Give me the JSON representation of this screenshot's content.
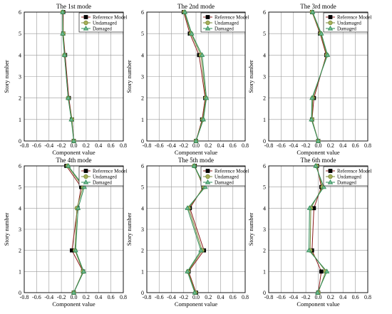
{
  "colors": {
    "reference": "#8b1a1a",
    "undamaged": "#7a8a3a",
    "damaged": "#2e8b57",
    "reference_marker": "#000000",
    "grid": "#9a9a9a"
  },
  "chart_data": [
    {
      "type": "line",
      "title": "The 1st mode",
      "xlabel": "Component value",
      "ylabel": "Story number",
      "xlim": [
        -0.8,
        0.8
      ],
      "ylim": [
        0,
        6
      ],
      "xticks": [
        "-0.8",
        "-0.6",
        "-0.4",
        "-0.2",
        "0.0",
        "0.2",
        "0.4",
        "0.6",
        "0.8"
      ],
      "yticks": [
        "0",
        "1",
        "2",
        "3",
        "4",
        "5",
        "6"
      ],
      "grid": true,
      "legend_position": "top-right",
      "y": [
        0,
        1,
        2,
        4,
        5,
        6
      ],
      "series": [
        {
          "name": "Reference Model",
          "marker": "square",
          "values": [
            0.0,
            -0.03,
            -0.08,
            -0.14,
            -0.17,
            -0.17
          ]
        },
        {
          "name": "Undamaged",
          "marker": "circle",
          "values": [
            0.0,
            -0.03,
            -0.09,
            -0.15,
            -0.17,
            -0.18
          ]
        },
        {
          "name": "Damaged",
          "marker": "triangle",
          "values": [
            0.0,
            -0.04,
            -0.09,
            -0.15,
            -0.18,
            -0.18
          ]
        }
      ]
    },
    {
      "type": "line",
      "title": "The 2nd mode",
      "xlabel": "Component value",
      "ylabel": "Story number",
      "xlim": [
        -0.8,
        0.8
      ],
      "ylim": [
        0,
        6
      ],
      "xticks": [
        "-0.8",
        "-0.6",
        "-0.4",
        "-0.2",
        "0.0",
        "0.2",
        "0.4",
        "0.6",
        "0.8"
      ],
      "yticks": [
        "0",
        "1",
        "2",
        "3",
        "4",
        "5",
        "6"
      ],
      "grid": true,
      "legend_position": "top-right",
      "y": [
        0,
        1,
        2,
        4,
        5,
        6
      ],
      "series": [
        {
          "name": "Reference Model",
          "marker": "square",
          "values": [
            0.0,
            0.1,
            0.15,
            0.05,
            -0.1,
            -0.2
          ]
        },
        {
          "name": "Undamaged",
          "marker": "circle",
          "values": [
            0.0,
            0.11,
            0.16,
            0.08,
            -0.08,
            -0.19
          ]
        },
        {
          "name": "Damaged",
          "marker": "triangle",
          "values": [
            0.0,
            0.12,
            0.17,
            0.1,
            -0.07,
            -0.18
          ]
        }
      ]
    },
    {
      "type": "line",
      "title": "The 3rd mode",
      "xlabel": "Component value",
      "ylabel": "Story number",
      "xlim": [
        -0.8,
        0.8
      ],
      "ylim": [
        0,
        6
      ],
      "xticks": [
        "-0.8",
        "-0.6",
        "-0.4",
        "-0.2",
        "0.0",
        "0.2",
        "0.4",
        "0.6",
        "0.8"
      ],
      "yticks": [
        "0",
        "1",
        "2",
        "3",
        "4",
        "5",
        "6"
      ],
      "grid": true,
      "legend_position": "top-right",
      "y": [
        0,
        1,
        2,
        4,
        5,
        6
      ],
      "series": [
        {
          "name": "Reference Model",
          "marker": "square",
          "values": [
            0.0,
            -0.1,
            -0.07,
            0.13,
            0.03,
            -0.1
          ]
        },
        {
          "name": "Undamaged",
          "marker": "circle",
          "values": [
            0.0,
            -0.1,
            -0.09,
            0.14,
            0.04,
            -0.1
          ]
        },
        {
          "name": "Damaged",
          "marker": "triangle",
          "values": [
            0.0,
            -0.11,
            -0.1,
            0.15,
            0.05,
            -0.09
          ]
        }
      ]
    },
    {
      "type": "line",
      "title": "The 4th mode",
      "xlabel": "Component value",
      "ylabel": "Story number",
      "xlim": [
        -0.8,
        0.8
      ],
      "ylim": [
        0,
        6
      ],
      "xticks": [
        "-0.8",
        "-0.6",
        "-0.4",
        "-0.2",
        "0.0",
        "0.2",
        "0.4",
        "0.6",
        "0.8"
      ],
      "yticks": [
        "0",
        "1",
        "2",
        "3",
        "4",
        "5",
        "6"
      ],
      "grid": true,
      "legend_position": "top-right",
      "y": [
        0,
        1,
        2,
        4,
        5,
        6
      ],
      "series": [
        {
          "name": "Reference Model",
          "marker": "square",
          "values": [
            0.0,
            0.15,
            -0.03,
            0.06,
            0.12,
            -0.12
          ]
        },
        {
          "name": "Undamaged",
          "marker": "circle",
          "values": [
            0.0,
            0.15,
            0.02,
            0.05,
            0.15,
            -0.1
          ]
        },
        {
          "name": "Damaged",
          "marker": "triangle",
          "values": [
            0.0,
            0.16,
            0.03,
            0.07,
            0.17,
            -0.09
          ]
        }
      ]
    },
    {
      "type": "line",
      "title": "The 5th mode",
      "xlabel": "Component value",
      "ylabel": "Story number",
      "xlim": [
        -0.8,
        0.8
      ],
      "ylim": [
        0,
        6
      ],
      "xticks": [
        "-0.8",
        "-0.6",
        "-0.4",
        "-0.2",
        "0.0",
        "0.2",
        "0.4",
        "0.6",
        "0.8"
      ],
      "yticks": [
        "0",
        "1",
        "2",
        "3",
        "4",
        "5",
        "6"
      ],
      "grid": true,
      "legend_position": "top-right",
      "y": [
        0,
        1,
        2,
        4,
        5,
        6
      ],
      "series": [
        {
          "name": "Reference Model",
          "marker": "square",
          "values": [
            0.0,
            -0.12,
            0.13,
            -0.1,
            0.12,
            -0.02
          ]
        },
        {
          "name": "Undamaged",
          "marker": "circle",
          "values": [
            -0.01,
            -0.13,
            0.1,
            -0.12,
            0.13,
            -0.03
          ]
        },
        {
          "name": "Damaged",
          "marker": "triangle",
          "values": [
            -0.02,
            -0.14,
            0.08,
            -0.14,
            0.15,
            -0.03
          ]
        }
      ]
    },
    {
      "type": "line",
      "title": "The 6th mode",
      "xlabel": "Component value",
      "ylabel": "Story number",
      "xlim": [
        -0.8,
        0.8
      ],
      "ylim": [
        0,
        6
      ],
      "xticks": [
        "-0.8",
        "-0.6",
        "-0.4",
        "-0.2",
        "0.0",
        "0.2",
        "0.4",
        "0.6",
        "0.8"
      ],
      "yticks": [
        "0",
        "1",
        "2",
        "3",
        "4",
        "5",
        "6"
      ],
      "grid": true,
      "legend_position": "top-right",
      "y": [
        0,
        1,
        2,
        4,
        5,
        6
      ],
      "series": [
        {
          "name": "Reference Model",
          "marker": "square",
          "values": [
            0.0,
            0.05,
            -0.1,
            -0.07,
            0.05,
            -0.02
          ]
        },
        {
          "name": "Undamaged",
          "marker": "circle",
          "values": [
            0.0,
            0.12,
            -0.13,
            -0.12,
            0.07,
            -0.03
          ]
        },
        {
          "name": "Damaged",
          "marker": "triangle",
          "values": [
            -0.01,
            0.14,
            -0.15,
            -0.14,
            0.09,
            -0.04
          ]
        }
      ]
    }
  ]
}
